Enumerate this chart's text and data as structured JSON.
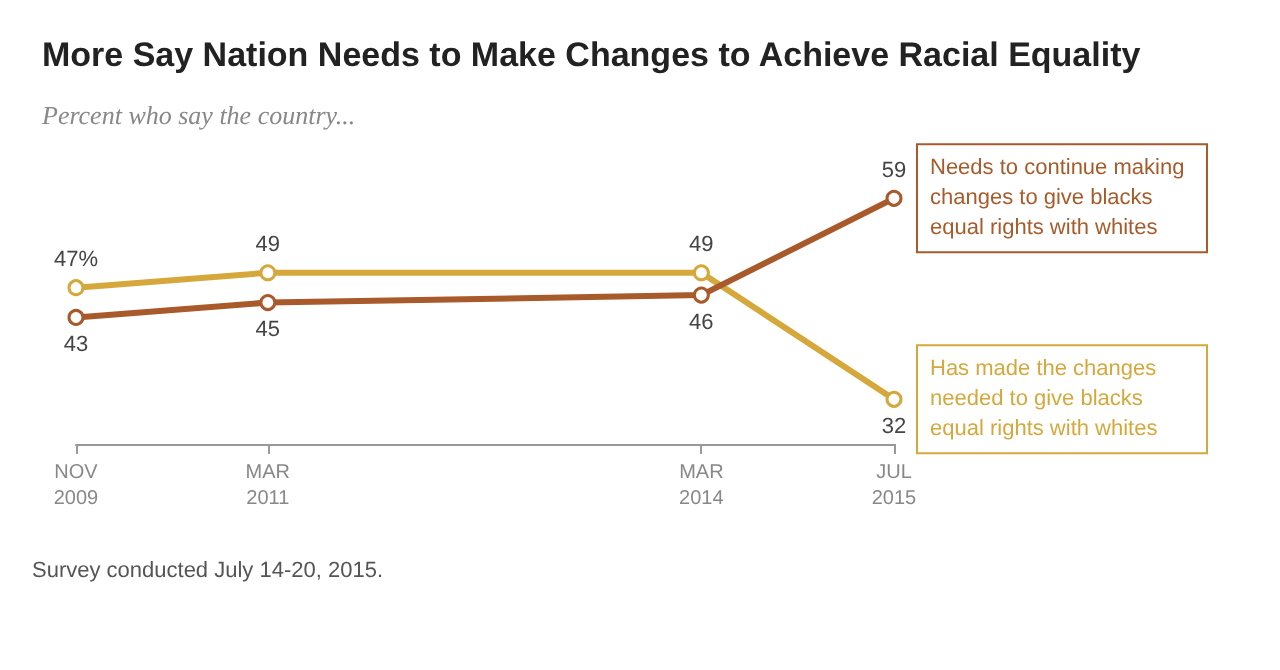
{
  "chart_data": {
    "type": "line",
    "title": "More Say Nation Needs to Make Changes to Achieve Racial Equality",
    "subtitle": "Percent who say the country...",
    "x": [
      "2009-11",
      "2011-03",
      "2014-03",
      "2015-07"
    ],
    "xlim": [
      "2009-11",
      "2015-07"
    ],
    "xticks": [
      {
        "value": "2009-11",
        "label": "NOV\n2009"
      },
      {
        "value": "2011-03",
        "label": "MAR\n2011"
      },
      {
        "value": "2014-03",
        "label": "MAR\n2014"
      },
      {
        "value": "2015-07",
        "label": "JUL\n2015"
      }
    ],
    "series": [
      {
        "name": "Has made the changes needed to give blacks equal rights with whites",
        "color": "#d6a83c",
        "values": [
          47,
          49,
          49,
          32
        ],
        "value_labels": [
          "47%",
          "49",
          "49",
          "32"
        ]
      },
      {
        "name": "Needs to continue making changes to give blacks equal rights with whites",
        "color": "#a85a2a",
        "values": [
          43,
          45,
          46,
          59
        ],
        "value_labels": [
          "43",
          "45",
          "46",
          "59"
        ]
      }
    ],
    "marker": "circle",
    "line_style": "solid",
    "grid": false,
    "legend": false,
    "annotations": [
      "Survey conducted July 14-20, 2015."
    ]
  }
}
